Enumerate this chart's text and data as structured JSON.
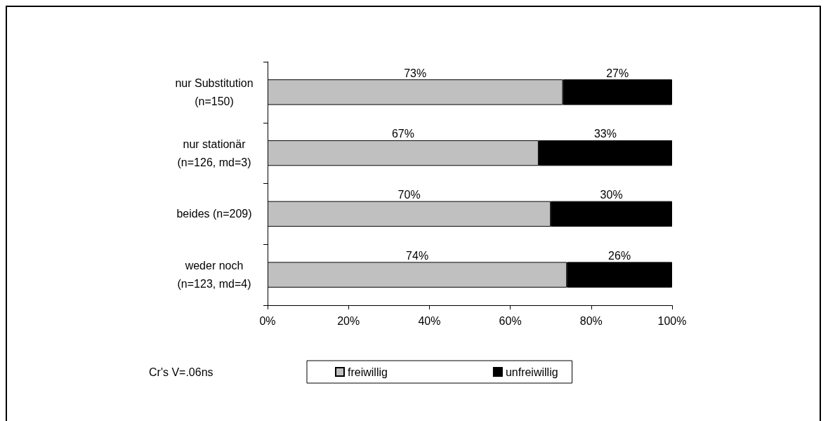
{
  "chart_data": {
    "type": "bar",
    "orientation": "horizontal",
    "stacked": true,
    "categories": [
      "nur Substitution (n=150)",
      "nur stationär (n=126, md=3)",
      "beides (n=209)",
      "weder noch (n=123, md=4)"
    ],
    "series": [
      {
        "name": "freiwillig",
        "color": "#c0c0c0",
        "values": [
          73,
          67,
          70,
          74
        ],
        "value_labels": [
          "73%",
          "67%",
          "70%",
          "74%"
        ]
      },
      {
        "name": "unfreiwillig",
        "color": "#000000",
        "values": [
          27,
          33,
          30,
          26
        ],
        "value_labels": [
          "27%",
          "33%",
          "30%",
          "26%"
        ]
      }
    ],
    "xlim": [
      0,
      100
    ],
    "xticks": [
      {
        "value": 0,
        "label": "0%"
      },
      {
        "value": 20,
        "label": "20%"
      },
      {
        "value": 40,
        "label": "40%"
      },
      {
        "value": 60,
        "label": "60%"
      },
      {
        "value": 80,
        "label": "80%"
      },
      {
        "value": 100,
        "label": "100%"
      }
    ],
    "grid": false,
    "legend": "bottom",
    "annotations": [
      "Cr's V=.06ns"
    ]
  }
}
